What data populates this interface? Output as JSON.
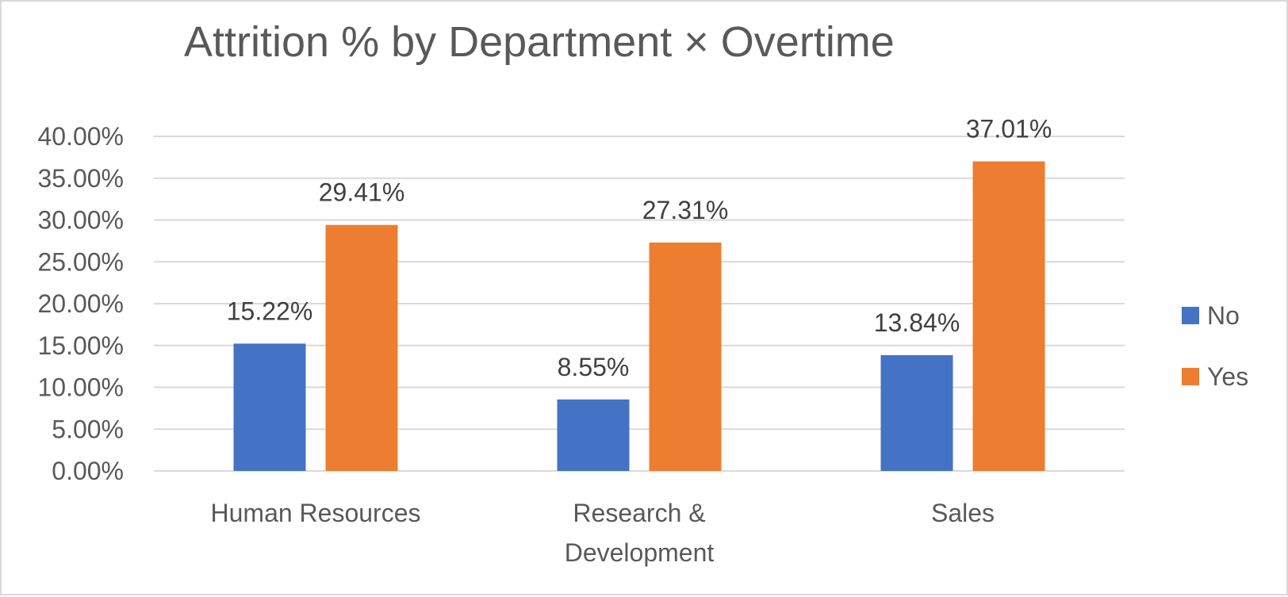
{
  "chart_data": {
    "type": "bar",
    "title": "Attrition % by Department × Overtime",
    "categories": [
      "Human Resources",
      "Research & Development",
      "Sales"
    ],
    "category_lines": [
      [
        "Human Resources"
      ],
      [
        "Research &",
        "Development"
      ],
      [
        "Sales"
      ]
    ],
    "series": [
      {
        "name": "No",
        "color": "#4472c4",
        "values": [
          15.22,
          8.55,
          13.84
        ],
        "labels": [
          "15.22%",
          "8.55%",
          "13.84%"
        ]
      },
      {
        "name": "Yes",
        "color": "#ed7d31",
        "values": [
          29.41,
          27.31,
          37.01
        ],
        "labels": [
          "29.41%",
          "27.31%",
          "37.01%"
        ]
      }
    ],
    "ylim": [
      0,
      40
    ],
    "yticks": [
      0,
      5,
      10,
      15,
      20,
      25,
      30,
      35,
      40
    ],
    "ytick_labels": [
      "0.00%",
      "5.00%",
      "10.00%",
      "15.00%",
      "20.00%",
      "25.00%",
      "30.00%",
      "35.00%",
      "40.00%"
    ],
    "xlabel": "",
    "ylabel": "",
    "grid": true,
    "gridline_color": "#d9d9d9",
    "legend_position": "right"
  }
}
